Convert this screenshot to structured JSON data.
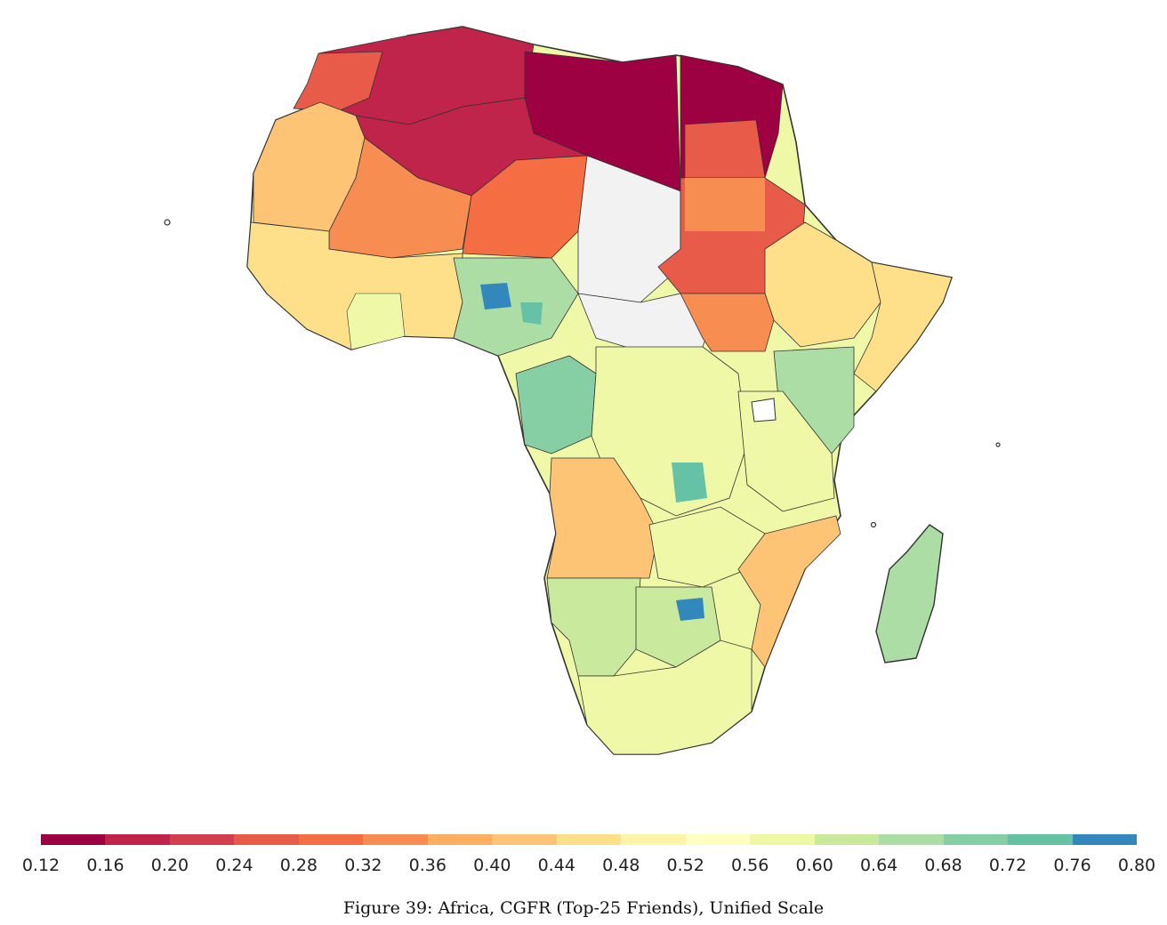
{
  "caption": "Figure 39: Africa, CGFR (Top-25 Friends), Unified Scale",
  "colorbar": {
    "ticks": [
      "0.12",
      "0.16",
      "0.20",
      "0.24",
      "0.28",
      "0.32",
      "0.36",
      "0.40",
      "0.44",
      "0.48",
      "0.52",
      "0.56",
      "0.60",
      "0.64",
      "0.68",
      "0.72",
      "0.76",
      "0.80"
    ],
    "colors": [
      "#9e0142",
      "#c0244b",
      "#d53e4f",
      "#e85b48",
      "#f46d43",
      "#f88d52",
      "#fdae61",
      "#fdc475",
      "#fee08b",
      "#fff2a9",
      "#ffffbf",
      "#eef8a7",
      "#c9e99d",
      "#abdda4",
      "#86cfa5",
      "#66c2a5",
      "#3288bd"
    ],
    "missing_color": "#f2f2f2"
  },
  "map": {
    "region": "Africa",
    "region_values": {
      "north_maghreb": 0.17,
      "libya": 0.12,
      "egypt": 0.14,
      "algeria_south": 0.2,
      "mauritania": 0.36,
      "mali": 0.33,
      "niger": 0.28,
      "chad": "missing",
      "sudan": 0.3,
      "west_coast": 0.46,
      "nigeria": 0.66,
      "ethiopia": 0.48,
      "somalia": 0.44,
      "drc": 0.54,
      "east_africa": 0.58,
      "angola": 0.42,
      "zambia": 0.56,
      "mozambique": 0.44,
      "southern_africa": 0.57,
      "madagascar": 0.62
    }
  }
}
